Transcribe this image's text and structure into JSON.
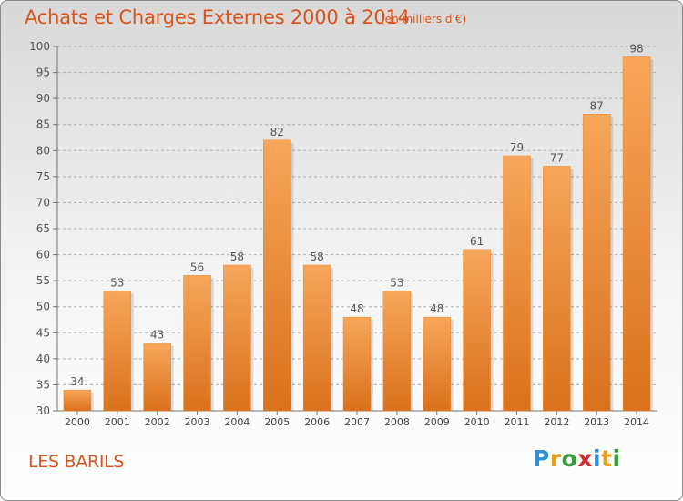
{
  "title": "Achats et Charges Externes 2000 à 2014",
  "subtitle": "(en milliers d'€)",
  "place": "LES BARILS",
  "logo": {
    "letters": [
      "P",
      "r",
      "o",
      "x",
      "i",
      "t",
      "i"
    ],
    "colors": [
      "#2a8fd6",
      "#e6a11a",
      "#3a9a3a",
      "#d92a2a",
      "#2a8fd6",
      "#e6a11a",
      "#3a9a3a"
    ]
  },
  "colors": {
    "bar_top": "#f7a65a",
    "bar_bottom": "#d9711c",
    "grid": "#b0b0b0",
    "text": "#555555",
    "accent": "#d9541c"
  },
  "chart_data": {
    "type": "bar",
    "categories": [
      "2000",
      "2001",
      "2002",
      "2003",
      "2004",
      "2005",
      "2006",
      "2007",
      "2008",
      "2009",
      "2010",
      "2011",
      "2012",
      "2013",
      "2014"
    ],
    "values": [
      34,
      53,
      43,
      56,
      58,
      82,
      58,
      48,
      53,
      48,
      61,
      79,
      77,
      87,
      98
    ],
    "ylim": [
      30,
      100
    ],
    "yticks": [
      30,
      35,
      40,
      45,
      50,
      55,
      60,
      65,
      70,
      75,
      80,
      85,
      90,
      95,
      100
    ],
    "grid": true
  }
}
